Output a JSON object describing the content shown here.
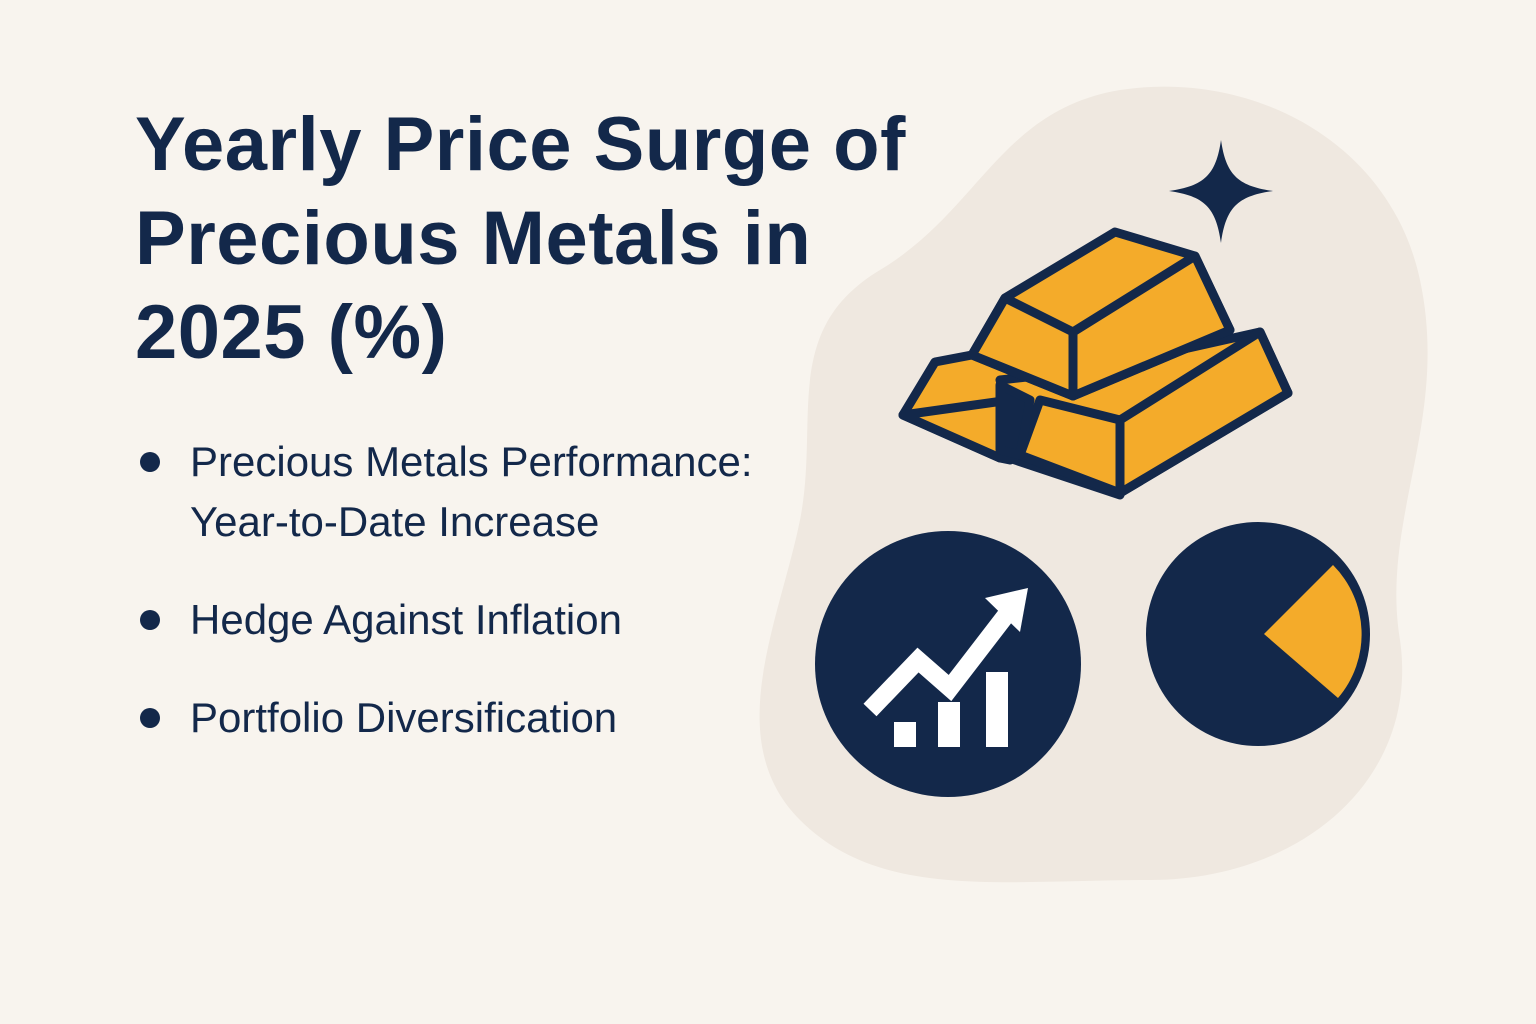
{
  "title": [
    "Yearly Price Surge of",
    "Precious Metals in",
    "2025 (%)"
  ],
  "bullets": [
    "Precious Metals Performance: Year-to-Date Increase",
    "Hedge Against Inflation",
    "Portfolio Diversification"
  ]
}
